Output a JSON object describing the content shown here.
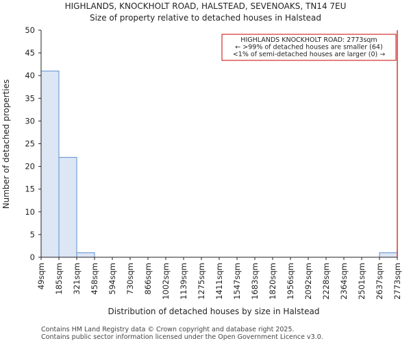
{
  "title": "HIGHLANDS, KNOCKHOLT ROAD, HALSTEAD, SEVENOAKS, TN14 7EU",
  "subtitle": "Size of property relative to detached houses in Halstead",
  "footer": {
    "line1": "Contains HM Land Registry data © Crown copyright and database right 2025.",
    "line2": "Contains public sector information licensed under the Open Government Licence v3.0."
  },
  "colors": {
    "bar_fill": "#dce6f4",
    "bar_stroke": "#5b8fd0",
    "marker": "#cc0000",
    "axis": "#222222"
  },
  "chart_data": {
    "type": "bar",
    "title": "HIGHLANDS, KNOCKHOLT ROAD, HALSTEAD, SEVENOAKS, TN14 7EU",
    "subtitle": "Size of property relative to detached houses in Halstead",
    "xlabel": "Distribution of detached houses by size in Halstead",
    "ylabel": "Number of detached properties",
    "bin_edges": [
      49,
      185,
      321,
      458,
      594,
      730,
      866,
      1002,
      1139,
      1275,
      1411,
      1547,
      1683,
      1820,
      1956,
      2092,
      2228,
      2364,
      2501,
      2637,
      2773
    ],
    "tick_labels": [
      "49sqm",
      "185sqm",
      "321sqm",
      "458sqm",
      "594sqm",
      "730sqm",
      "866sqm",
      "1002sqm",
      "1139sqm",
      "1275sqm",
      "1411sqm",
      "1547sqm",
      "1683sqm",
      "1820sqm",
      "1956sqm",
      "2092sqm",
      "2228sqm",
      "2364sqm",
      "2501sqm",
      "2637sqm",
      "2773sqm"
    ],
    "values": [
      41,
      22,
      1,
      0,
      0,
      0,
      0,
      0,
      0,
      0,
      0,
      0,
      0,
      0,
      0,
      0,
      0,
      0,
      0,
      1
    ],
    "ylim": [
      0,
      50
    ],
    "yticks": [
      0,
      5,
      10,
      15,
      20,
      25,
      30,
      35,
      40,
      45,
      50
    ],
    "grid": false,
    "marker_value": 2773,
    "annotation": {
      "lines": [
        "HIGHLANDS KNOCKHOLT ROAD: 2773sqm",
        "← >99% of detached houses are smaller (64)",
        "<1% of semi-detached houses are larger (0) →"
      ],
      "placement": "top-right"
    }
  }
}
